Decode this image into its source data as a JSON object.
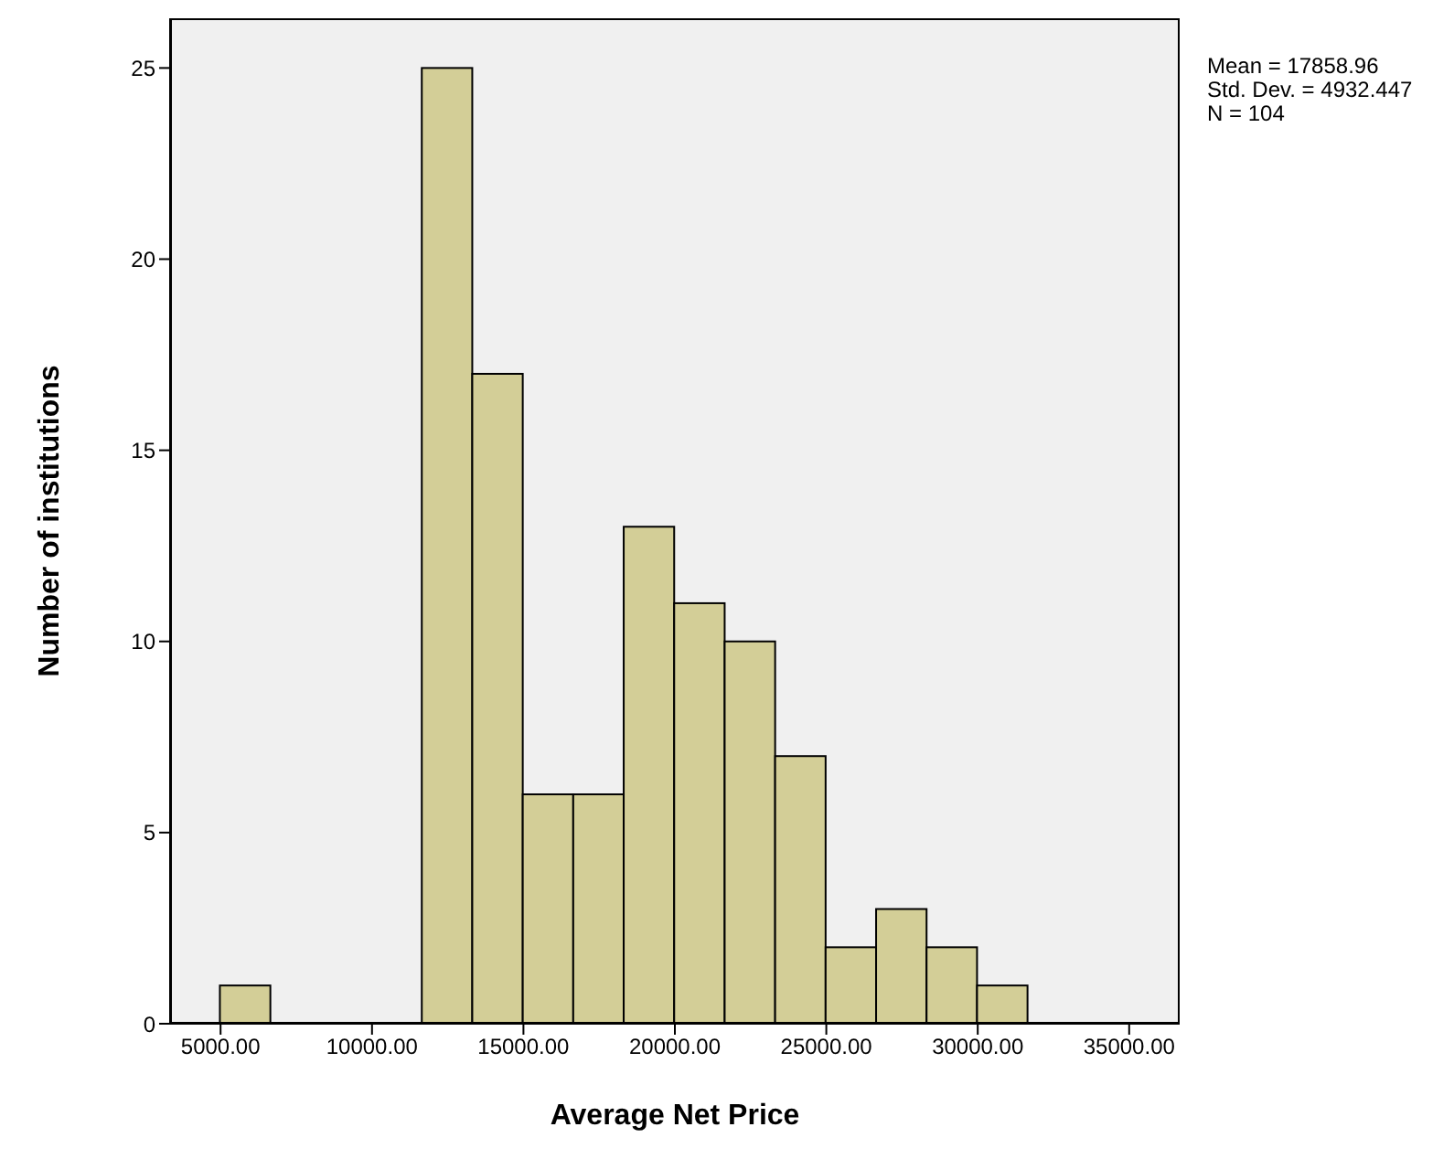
{
  "chart_data": {
    "type": "histogram",
    "xlabel": "Average Net Price",
    "ylabel": "Number of institutions",
    "bins": [
      5000,
      6666.67,
      8333.33,
      10000,
      11666.67,
      13333.33,
      15000,
      16666.67,
      18333.33,
      20000,
      21666.67,
      23333.33,
      25000,
      26666.67,
      28333.33,
      30000,
      31666.67
    ],
    "values": [
      1,
      0,
      0,
      0,
      25,
      17,
      6,
      6,
      13,
      11,
      10,
      7,
      2,
      3,
      2,
      1
    ],
    "color": "#d3ce97",
    "xlim": [
      3333,
      36667
    ],
    "ylim": [
      0,
      26.3
    ],
    "xticks": [
      {
        "value": 5000,
        "label": "5000.00"
      },
      {
        "value": 10000,
        "label": "10000.00"
      },
      {
        "value": 15000,
        "label": "15000.00"
      },
      {
        "value": 20000,
        "label": "20000.00"
      },
      {
        "value": 25000,
        "label": "25000.00"
      },
      {
        "value": 30000,
        "label": "30000.00"
      },
      {
        "value": 35000,
        "label": "35000.00"
      }
    ],
    "yticks": [
      0,
      5,
      10,
      15,
      20,
      25
    ],
    "annotations": [
      "Mean = 17858.96",
      "Std. Dev. = 4932.447",
      "N = 104"
    ]
  }
}
